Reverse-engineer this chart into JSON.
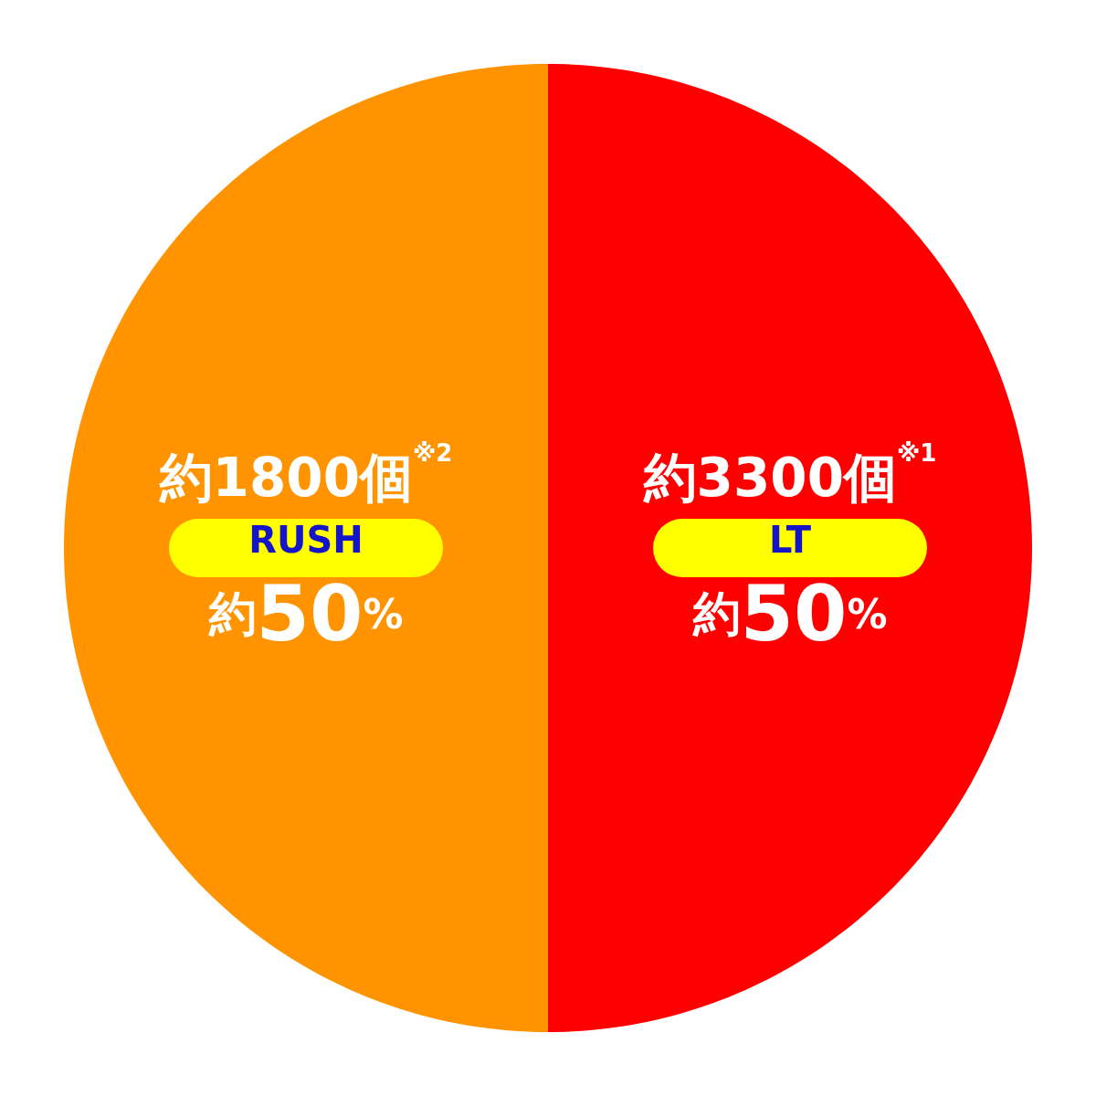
{
  "chart_data": {
    "type": "pie",
    "categories": [
      "LT",
      "RUSH"
    ],
    "values": [
      50,
      50
    ],
    "colors": [
      "#ff0000",
      "#ff9400"
    ],
    "value_labels": [
      "約50%",
      "約50%"
    ],
    "annotations": [
      "約3300個$^{※1}$",
      "約1800個$^{※2}$"
    ]
  }
}
